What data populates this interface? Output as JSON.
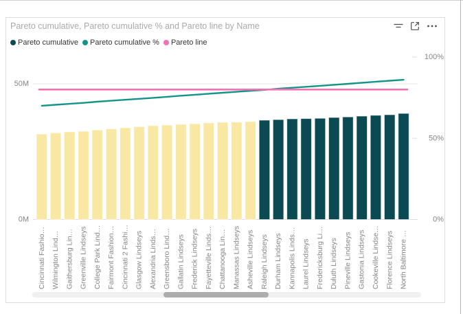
{
  "card": {
    "title": "Pareto cumulative, Pareto cumulative % and Pareto line by Name",
    "toolbar": {
      "icons": [
        {
          "name": "filter-icon",
          "meaning": "filters"
        },
        {
          "name": "focus-mode-icon",
          "meaning": "open in focus mode"
        },
        {
          "name": "more-options-icon",
          "meaning": "more options",
          "glyph": "⋯"
        }
      ]
    }
  },
  "legend": {
    "items": [
      {
        "label": "Pareto cumulative",
        "color": "#0C4A53"
      },
      {
        "label": "Pareto cumulative %",
        "color": "#149489"
      },
      {
        "label": "Pareto line",
        "color": "#F571B4"
      }
    ]
  },
  "chart_data": {
    "type": "combo-bar-line-pareto",
    "title": "Pareto cumulative, Pareto cumulative % and Pareto line by Name",
    "xlabel": "Name",
    "legend_position": "top-left",
    "grid": "horizontal gridline at 50M only",
    "categories": [
      "Cincinnati Fashio…",
      "Wilmington Lind…",
      "Gaithersburg Lin…",
      "Greenville Lindseys",
      "College Park Lind…",
      "Fairmont Fashion…",
      "Cincinnati 2 Fashi…",
      "Glasgow Lindseys",
      "Alexandria Linds…",
      "Greensboro Lind…",
      "Gallatin Lindseys",
      "Frederick Lindseys",
      "Fayetteville Linds…",
      "Chattanooga Lin…",
      "Manassas Lindseys",
      "Asheville Lindseys",
      "Raleigh Lindseys",
      "Durham Lindseys",
      "Kannapolis Linds…",
      "Laurel Lindseys",
      "Fredericksburg Li…",
      "Duluth Lindseys",
      "Pineville Lindseys",
      "Gastonia Lindseys",
      "Cookeville Lindse…",
      "Florence Lindseys",
      "North Baltimore …"
    ],
    "series": [
      {
        "name": "Pareto cumulative",
        "type": "bar",
        "axis": "left",
        "unit": "M",
        "values": [
          31.5,
          31.9,
          32.3,
          32.5,
          33.0,
          33.4,
          33.8,
          34.2,
          34.6,
          34.8,
          35.1,
          35.3,
          35.6,
          35.8,
          35.9,
          36.1,
          36.6,
          36.8,
          37.1,
          37.2,
          37.3,
          37.6,
          37.8,
          38.1,
          38.4,
          38.6,
          39.1
        ],
        "bar_color_light": "#F8E8A3",
        "bar_color_dark": "#0C4A53",
        "light_bar_count": 16
      },
      {
        "name": "Pareto cumulative %",
        "type": "line",
        "axis": "right",
        "unit": "%",
        "values": [
          70.0,
          70.6,
          71.2,
          71.8,
          72.5,
          73.1,
          73.7,
          74.3,
          74.9,
          75.5,
          76.2,
          76.8,
          77.4,
          78.0,
          78.6,
          79.2,
          79.8,
          80.5,
          81.1,
          81.7,
          82.3,
          82.9,
          83.5,
          84.2,
          84.8,
          85.4,
          86.0
        ],
        "color": "#149489"
      },
      {
        "name": "Pareto line",
        "type": "constant-line",
        "axis": "right",
        "unit": "%",
        "value": 80,
        "color": "#F571B4"
      }
    ],
    "y_left": {
      "min": 0,
      "max": 50,
      "unit": "M",
      "ticks": [
        {
          "value": 0,
          "label": "0M"
        },
        {
          "value": 50,
          "label": "50M"
        }
      ]
    },
    "y_right": {
      "min": 0,
      "max": 100,
      "unit": "%",
      "ticks": [
        {
          "value": 0,
          "label": "0%"
        },
        {
          "value": 50,
          "label": "50%"
        },
        {
          "value": 100,
          "label": "100%"
        }
      ]
    },
    "x_label_rotation": -90
  },
  "colors": {
    "title_text": "#A9A9A9",
    "axis_text": "#858585",
    "legend_text": "#333333",
    "gridline": "#E8E8E8",
    "axis_baseline": "#DCDCDC",
    "icon": "#4D4D4D"
  },
  "scrollbar": {
    "orientation": "horizontal"
  }
}
